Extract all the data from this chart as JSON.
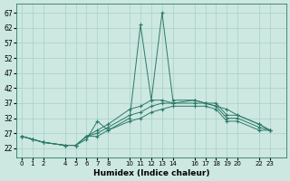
{
  "xlabel": "Humidex (Indice chaleur)",
  "bg_color": "#cce8e0",
  "grid_color": "#aacfc8",
  "line_color": "#2d7a6a",
  "x_ticks_show": [
    0,
    1,
    2,
    4,
    5,
    6,
    7,
    8,
    10,
    11,
    12,
    13,
    14,
    16,
    17,
    18,
    19,
    20,
    22,
    23
  ],
  "yticks": [
    22,
    27,
    32,
    37,
    42,
    47,
    52,
    57,
    62,
    67
  ],
  "ylim": [
    19,
    70
  ],
  "xlim": [
    -0.5,
    24.5
  ],
  "series": [
    {
      "x": [
        0,
        1,
        2,
        4,
        5,
        6,
        7,
        8,
        10,
        11,
        12,
        13,
        14,
        16,
        17,
        18,
        19,
        20,
        22,
        23
      ],
      "y": [
        26,
        25,
        24,
        23,
        23,
        26,
        28,
        30,
        35,
        36,
        38,
        38,
        37,
        38,
        37,
        37,
        33,
        33,
        30,
        28
      ]
    },
    {
      "x": [
        0,
        1,
        2,
        4,
        5,
        6,
        7,
        8,
        10,
        11,
        12,
        13,
        14,
        16,
        17,
        18,
        19,
        20,
        22,
        23
      ],
      "y": [
        26,
        25,
        24,
        23,
        23,
        26,
        27,
        29,
        33,
        34,
        36,
        37,
        37,
        37,
        37,
        36,
        32,
        32,
        29,
        28
      ]
    },
    {
      "x": [
        0,
        1,
        2,
        4,
        5,
        6,
        7,
        8,
        10,
        11,
        12,
        13,
        14,
        16,
        17,
        18,
        19,
        20,
        22,
        23
      ],
      "y": [
        26,
        25,
        24,
        23,
        23,
        26,
        26,
        28,
        31,
        32,
        34,
        35,
        36,
        36,
        36,
        35,
        31,
        31,
        28,
        28
      ]
    },
    {
      "x": [
        0,
        2,
        4,
        5,
        6,
        7,
        8,
        10,
        11,
        12,
        13,
        14,
        16,
        17,
        18,
        19,
        20,
        22,
        23
      ],
      "y": [
        26,
        24,
        23,
        23,
        25,
        31,
        28,
        32,
        63,
        38,
        67,
        38,
        38,
        37,
        36,
        35,
        33,
        30,
        28
      ]
    }
  ]
}
